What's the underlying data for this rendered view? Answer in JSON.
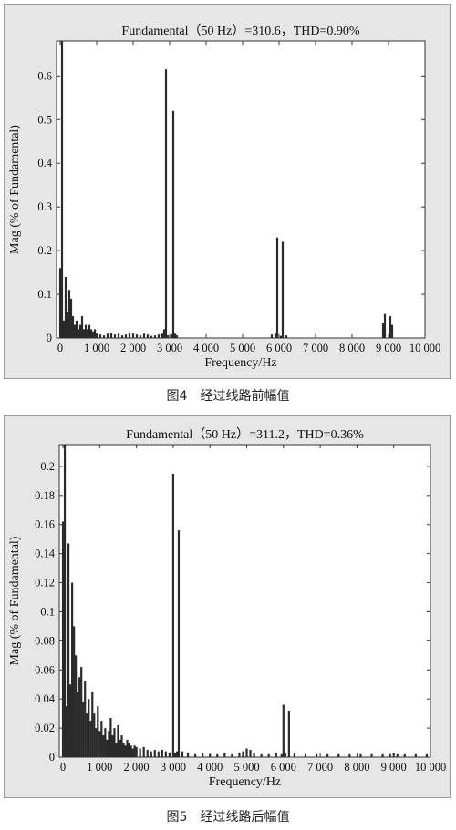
{
  "chart_data": [
    {
      "type": "bar",
      "title": "Fundamental（50 Hz）=310.6，THD=0.90%",
      "xlabel": "Frequency/Hz",
      "ylabel": "Mag (% of Fundamental)",
      "caption": "图4　经过线路前幅值",
      "xlim": [
        -100,
        10000
      ],
      "ylim": [
        0,
        0.68
      ],
      "xticks": [
        0,
        1000,
        2000,
        3000,
        4000,
        5000,
        6000,
        7000,
        8000,
        9000,
        10000
      ],
      "xtick_labels": [
        "0",
        "1 000",
        "2 000",
        "3 000",
        "4 000",
        "5 000",
        "6 000",
        "7 000",
        "8 000",
        "9 000",
        "10 000"
      ],
      "yticks": [
        0,
        0.1,
        0.2,
        0.3,
        0.4,
        0.5,
        0.6
      ],
      "ytick_labels": [
        "0",
        "0.1",
        "0.2",
        "0.3",
        "0.4",
        "0.5",
        "0.6"
      ],
      "grid": false,
      "x": [
        0,
        50,
        100,
        150,
        200,
        250,
        300,
        350,
        400,
        450,
        500,
        550,
        600,
        650,
        700,
        750,
        800,
        850,
        900,
        950,
        1000,
        1100,
        1200,
        1300,
        1400,
        1500,
        1600,
        1700,
        1800,
        1900,
        2000,
        2100,
        2200,
        2300,
        2400,
        2500,
        2600,
        2700,
        2800,
        2850,
        2900,
        2950,
        3050,
        3100,
        3150,
        3200,
        5800,
        5900,
        5950,
        6050,
        6100,
        6200,
        8850,
        8900,
        9050,
        9100
      ],
      "values": [
        0.16,
        0.68,
        0.04,
        0.14,
        0.06,
        0.11,
        0.09,
        0.05,
        0.03,
        0.04,
        0.02,
        0.03,
        0.05,
        0.02,
        0.03,
        0.02,
        0.03,
        0.02,
        0.015,
        0.02,
        0.01,
        0.008,
        0.006,
        0.01,
        0.012,
        0.008,
        0.01,
        0.006,
        0.008,
        0.012,
        0.01,
        0.008,
        0.006,
        0.01,
        0.008,
        0.005,
        0.006,
        0.008,
        0.01,
        0.02,
        0.615,
        0.006,
        0.008,
        0.52,
        0.01,
        0.006,
        0.008,
        0.01,
        0.23,
        0.005,
        0.22,
        0.006,
        0.035,
        0.055,
        0.05,
        0.03
      ]
    },
    {
      "type": "bar",
      "title": "Fundamental（50 Hz）=311.2，THD=0.36%",
      "xlabel": "Frequency/Hz",
      "ylabel": "Mag (% of Fundamental)",
      "caption": "图5　经过线路后幅值",
      "xlim": [
        -100,
        10000
      ],
      "ylim": [
        0,
        0.215
      ],
      "xticks": [
        0,
        1000,
        2000,
        3000,
        4000,
        5000,
        6000,
        7000,
        8000,
        9000,
        10000
      ],
      "xtick_labels": [
        "0",
        "1 000",
        "2 000",
        "3 000",
        "4 000",
        "5 000",
        "6 000",
        "7 000",
        "8 000",
        "9 000",
        "10 000"
      ],
      "yticks": [
        0,
        0.02,
        0.04,
        0.06,
        0.08,
        0.1,
        0.12,
        0.14,
        0.16,
        0.18,
        0.2
      ],
      "ytick_labels": [
        "0",
        "0.02",
        "0.04",
        "0.06",
        "0.08",
        "0.1",
        "0.12",
        "0.14",
        "0.16",
        "0.18",
        "0.2"
      ],
      "grid": false,
      "x": [
        0,
        50,
        100,
        150,
        200,
        250,
        300,
        350,
        400,
        450,
        500,
        550,
        600,
        650,
        700,
        750,
        800,
        850,
        900,
        950,
        1000,
        1050,
        1100,
        1150,
        1200,
        1250,
        1300,
        1350,
        1400,
        1450,
        1500,
        1550,
        1600,
        1650,
        1700,
        1750,
        1800,
        1850,
        1900,
        1950,
        2000,
        2100,
        2200,
        2300,
        2400,
        2500,
        2600,
        2700,
        2800,
        2900,
        3000,
        3050,
        3100,
        3150,
        3250,
        3400,
        3600,
        3800,
        4000,
        4200,
        4400,
        4600,
        4800,
        4900,
        5000,
        5100,
        5200,
        5400,
        5600,
        5800,
        5950,
        6000,
        6050,
        6150,
        6300,
        6600,
        6900,
        7200,
        7500,
        7800,
        8100,
        8400,
        8700,
        8900,
        9000,
        9100,
        9300,
        9600,
        9900
      ],
      "values": [
        0.162,
        0.215,
        0.035,
        0.147,
        0.05,
        0.12,
        0.09,
        0.07,
        0.045,
        0.055,
        0.062,
        0.038,
        0.052,
        0.03,
        0.04,
        0.025,
        0.045,
        0.03,
        0.02,
        0.035,
        0.018,
        0.025,
        0.015,
        0.02,
        0.012,
        0.018,
        0.027,
        0.015,
        0.02,
        0.01,
        0.022,
        0.012,
        0.015,
        0.01,
        0.008,
        0.012,
        0.01,
        0.008,
        0.006,
        0.008,
        0.007,
        0.006,
        0.007,
        0.005,
        0.004,
        0.005,
        0.004,
        0.005,
        0.004,
        0.003,
        0.195,
        0.003,
        0.004,
        0.156,
        0.004,
        0.003,
        0.002,
        0.003,
        0.002,
        0.002,
        0.003,
        0.002,
        0.003,
        0.004,
        0.006,
        0.005,
        0.003,
        0.002,
        0.002,
        0.003,
        0.002,
        0.036,
        0.003,
        0.032,
        0.003,
        0.002,
        0.002,
        0.002,
        0.002,
        0.002,
        0.002,
        0.002,
        0.002,
        0.002,
        0.003,
        0.002,
        0.002,
        0.002,
        0.002
      ]
    }
  ]
}
